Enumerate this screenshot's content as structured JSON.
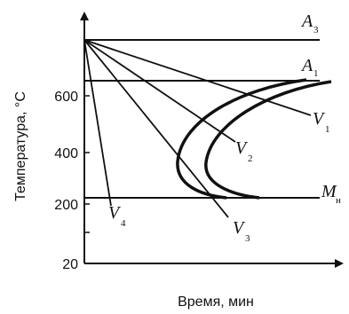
{
  "chart_data": {
    "type": "line",
    "title": "",
    "xlabel": "Время, мин",
    "ylabel": "Температура, °С",
    "y_ticks": [
      "20",
      "200",
      "400",
      "600"
    ],
    "horizontal_lines": [
      {
        "label": "A",
        "sub": "3"
      },
      {
        "label": "A",
        "sub": "1"
      },
      {
        "label": "M",
        "sub": "н"
      }
    ],
    "cooling_curves": [
      {
        "label": "V",
        "sub": "1"
      },
      {
        "label": "V",
        "sub": "2"
      },
      {
        "label": "V",
        "sub": "3"
      },
      {
        "label": "V",
        "sub": "4"
      }
    ],
    "c_curves": 2
  }
}
